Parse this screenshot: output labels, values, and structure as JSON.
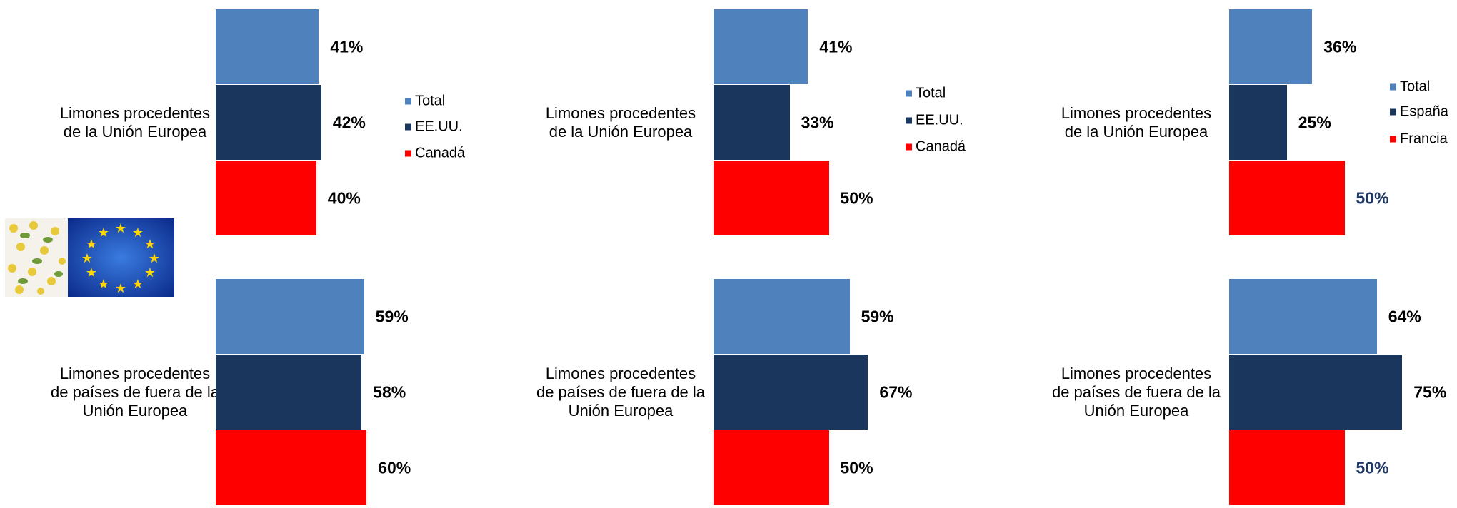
{
  "chart_data": [
    {
      "type": "bar",
      "orientation": "horizontal",
      "categories": [
        "Limones procedentes de la Unión Europea",
        "Limones procedentes de países de fuera de la Unión Europea"
      ],
      "series": [
        {
          "name": "Total",
          "color": "#4f81bd",
          "values": [
            41,
            59
          ],
          "value_labels": [
            "41%",
            "59%"
          ]
        },
        {
          "name": "EE.UU.",
          "color": "#1b365d",
          "values": [
            42,
            58
          ],
          "value_labels": [
            "42%",
            "58%"
          ]
        },
        {
          "name": "Canadá",
          "color": "#ff0000",
          "values": [
            40,
            60
          ],
          "value_labels": [
            "40%",
            "60%"
          ]
        }
      ]
    },
    {
      "type": "bar",
      "orientation": "horizontal",
      "categories": [
        "Limones procedentes de la Unión Europea",
        "Limones procedentes de países de fuera de la Unión Europea"
      ],
      "series": [
        {
          "name": "Total",
          "color": "#4f81bd",
          "values": [
            41,
            59
          ],
          "value_labels": [
            "41%",
            "59%"
          ]
        },
        {
          "name": "EE.UU.",
          "color": "#1b365d",
          "values": [
            33,
            67
          ],
          "value_labels": [
            "33%",
            "67%"
          ]
        },
        {
          "name": "Canadá",
          "color": "#ff0000",
          "values": [
            50,
            50
          ],
          "value_labels": [
            "50%",
            "50%"
          ]
        }
      ]
    },
    {
      "type": "bar",
      "orientation": "horizontal",
      "categories": [
        "Limones procedentes de la Unión Europea",
        "Limones procedentes de países de fuera de la Unión Europea"
      ],
      "series": [
        {
          "name": "Total",
          "color": "#4f81bd",
          "values": [
            36,
            64
          ],
          "value_labels": [
            "36%",
            "64%"
          ]
        },
        {
          "name": "España",
          "color": "#1b365d",
          "values": [
            25,
            75
          ],
          "value_labels": [
            "25%",
            "75%"
          ]
        },
        {
          "name": "Francia",
          "color": "#ff0000",
          "values": [
            50,
            50
          ],
          "value_labels": [
            "50%",
            "50%"
          ],
          "value_label_color": "#1f3864"
        }
      ]
    }
  ]
}
